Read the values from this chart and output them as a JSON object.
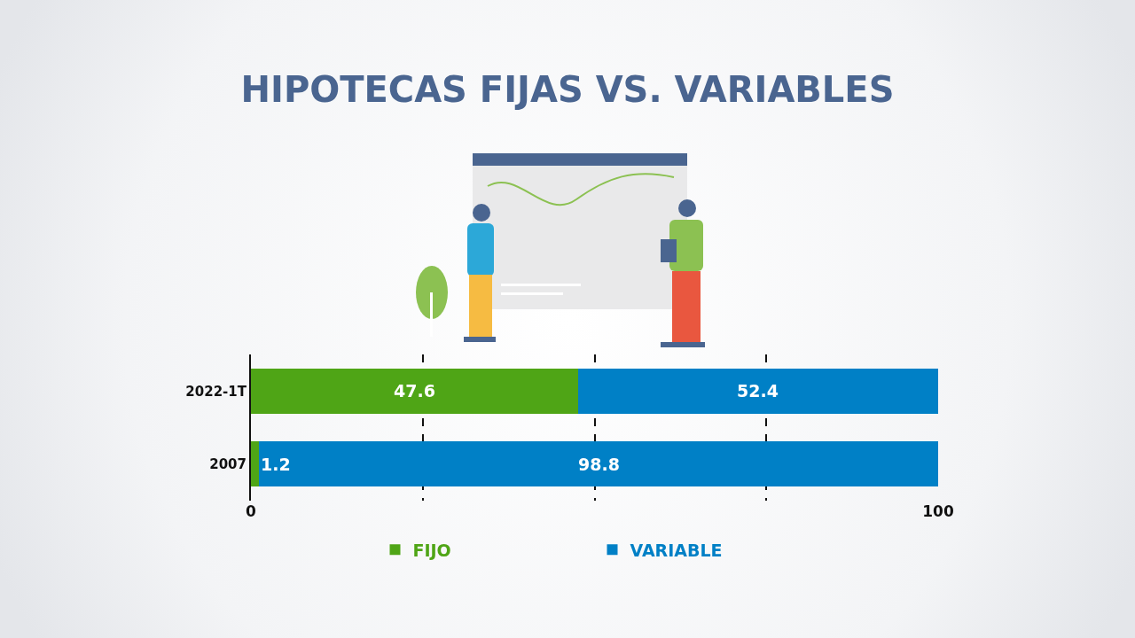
{
  "chart_data": {
    "type": "bar",
    "orientation": "horizontal",
    "stacked": true,
    "title": "HIPOTECAS FIJAS VS. VARIABLES",
    "categories": [
      "2022-1T",
      "2007"
    ],
    "series": [
      {
        "name": "FIJO",
        "color": "#4fa516",
        "values": [
          47.6,
          1.2
        ]
      },
      {
        "name": "VARIABLE",
        "color": "#0080c6",
        "values": [
          52.4,
          98.8
        ]
      }
    ],
    "xlim": [
      0,
      100
    ],
    "xticks": [
      0,
      {
        "value": 25,
        "label": null
      },
      {
        "value": 50,
        "label": null
      },
      {
        "value": 75,
        "label": null
      },
      100
    ],
    "grid": "x",
    "data_labels": true,
    "legend": "bottom"
  }
}
